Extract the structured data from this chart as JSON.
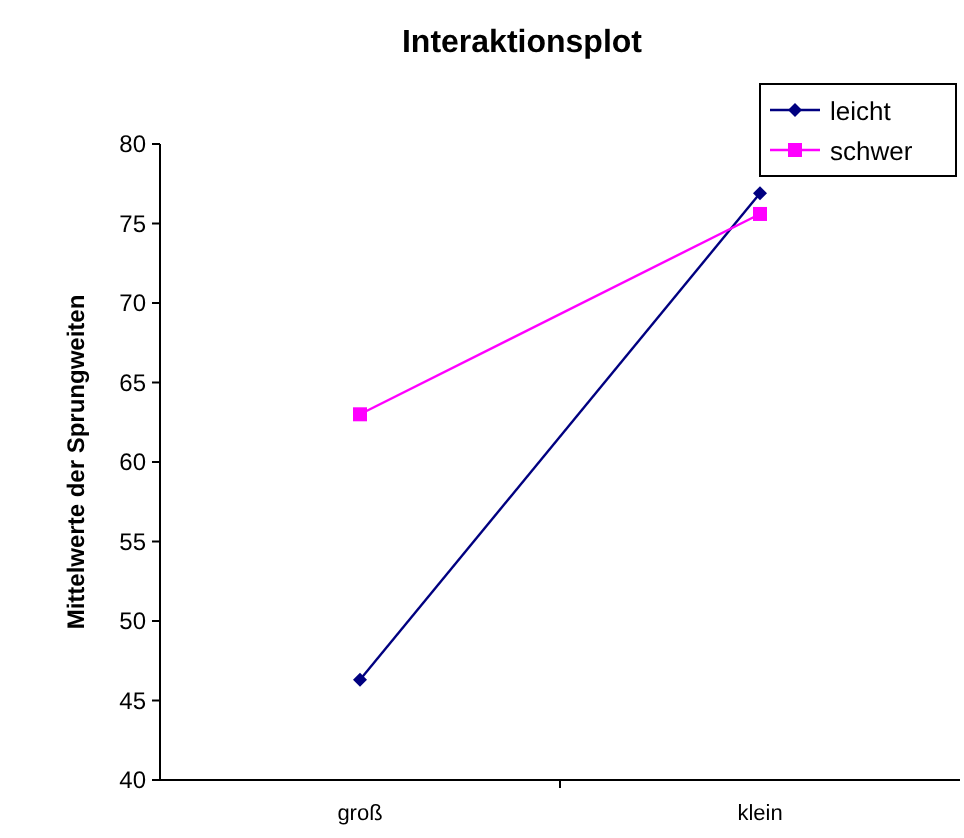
{
  "chart_data": {
    "type": "line",
    "title": "Interaktionsplot",
    "ylabel": "Mittelwerte der Sprungweiten",
    "categories": [
      "groß",
      "klein"
    ],
    "series": [
      {
        "name": "leicht",
        "color": "#000080",
        "marker": "diamond",
        "values": [
          46.3,
          76.9
        ]
      },
      {
        "name": "schwer",
        "color": "#ff00ff",
        "marker": "square",
        "values": [
          63,
          75.6
        ]
      }
    ],
    "ylim": [
      40,
      80
    ],
    "yticks": [
      40,
      45,
      50,
      55,
      60,
      65,
      70,
      75,
      80
    ],
    "legend": "top right",
    "line_style": "solid"
  }
}
